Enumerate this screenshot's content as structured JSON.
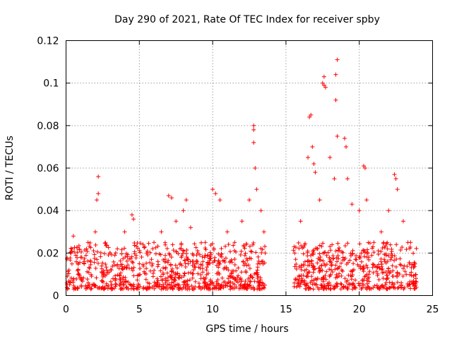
{
  "chart_data": {
    "type": "scatter",
    "title": "Day 290 of 2021, Rate Of TEC Index for receiver spby",
    "xlabel": "GPS time / hours",
    "ylabel": "ROTI / TECUs",
    "xlim": [
      0,
      25
    ],
    "ylim": [
      0,
      0.12
    ],
    "xticks": [
      0,
      5,
      10,
      15,
      20,
      25
    ],
    "xtick_labels": [
      "0",
      "5",
      "10",
      "15",
      "20",
      "25"
    ],
    "yticks": [
      0,
      0.02,
      0.04,
      0.06,
      0.08,
      0.1,
      0.12
    ],
    "ytick_labels": [
      "0",
      "0.02",
      "0.04",
      "0.06",
      "0.08",
      "0.1",
      "0.12"
    ],
    "grid": true,
    "marker": "+",
    "color": "#ff0000",
    "data_gap_hours": [
      13.6,
      15.5
    ],
    "series": [
      {
        "points": [
          [
            0.2,
            0.012
          ],
          [
            0.5,
            0.028
          ],
          [
            1.0,
            0.018
          ],
          [
            1.5,
            0.025
          ],
          [
            2.0,
            0.03
          ],
          [
            2.2,
            0.056
          ],
          [
            2.2,
            0.048
          ],
          [
            2.1,
            0.045
          ],
          [
            3.0,
            0.02
          ],
          [
            3.5,
            0.022
          ],
          [
            4.0,
            0.03
          ],
          [
            4.5,
            0.038
          ],
          [
            4.6,
            0.036
          ],
          [
            5.0,
            0.015
          ],
          [
            5.5,
            0.02
          ],
          [
            6.0,
            0.025
          ],
          [
            6.5,
            0.03
          ],
          [
            7.0,
            0.047
          ],
          [
            7.2,
            0.046
          ],
          [
            7.5,
            0.035
          ],
          [
            8.0,
            0.04
          ],
          [
            8.2,
            0.045
          ],
          [
            8.5,
            0.032
          ],
          [
            9.0,
            0.02
          ],
          [
            9.5,
            0.025
          ],
          [
            10.0,
            0.05
          ],
          [
            10.2,
            0.048
          ],
          [
            10.5,
            0.045
          ],
          [
            11.0,
            0.03
          ],
          [
            11.5,
            0.025
          ],
          [
            12.0,
            0.035
          ],
          [
            12.5,
            0.045
          ],
          [
            12.8,
            0.08
          ],
          [
            12.8,
            0.078
          ],
          [
            12.8,
            0.072
          ],
          [
            12.9,
            0.06
          ],
          [
            13.0,
            0.05
          ],
          [
            13.3,
            0.04
          ],
          [
            13.5,
            0.03
          ],
          [
            15.6,
            0.02
          ],
          [
            16.0,
            0.035
          ],
          [
            16.5,
            0.065
          ],
          [
            16.7,
            0.085
          ],
          [
            16.6,
            0.084
          ],
          [
            16.8,
            0.07
          ],
          [
            16.9,
            0.062
          ],
          [
            17.0,
            0.058
          ],
          [
            17.3,
            0.045
          ],
          [
            17.5,
            0.1
          ],
          [
            17.6,
            0.099
          ],
          [
            17.7,
            0.098
          ],
          [
            17.6,
            0.103
          ],
          [
            18.0,
            0.065
          ],
          [
            18.3,
            0.055
          ],
          [
            18.4,
            0.104
          ],
          [
            18.5,
            0.111
          ],
          [
            18.4,
            0.092
          ],
          [
            18.5,
            0.075
          ],
          [
            19.0,
            0.074
          ],
          [
            19.1,
            0.07
          ],
          [
            19.2,
            0.055
          ],
          [
            19.5,
            0.043
          ],
          [
            20.0,
            0.04
          ],
          [
            20.3,
            0.061
          ],
          [
            20.4,
            0.06
          ],
          [
            20.5,
            0.045
          ],
          [
            21.0,
            0.025
          ],
          [
            21.5,
            0.03
          ],
          [
            22.0,
            0.04
          ],
          [
            22.4,
            0.057
          ],
          [
            22.5,
            0.055
          ],
          [
            22.6,
            0.05
          ],
          [
            23.0,
            0.035
          ],
          [
            23.5,
            0.025
          ],
          [
            23.8,
            0.015
          ]
        ],
        "bulk_range": [
          0.003,
          0.025
        ]
      }
    ]
  }
}
